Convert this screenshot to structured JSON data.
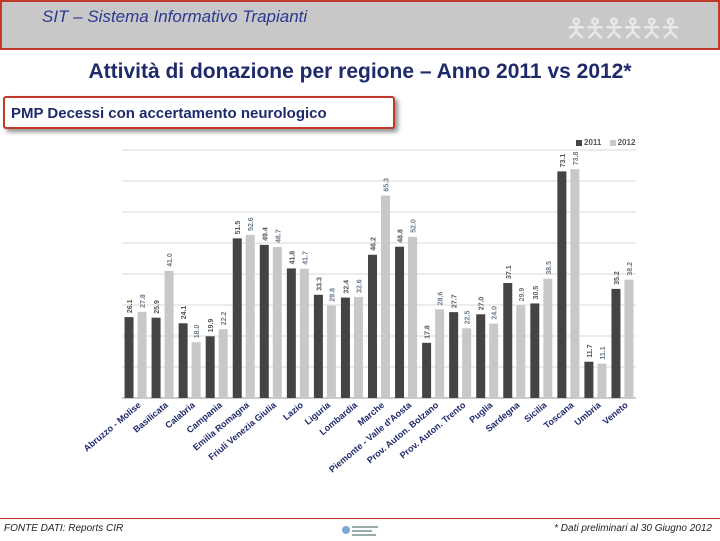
{
  "header": {
    "title": "SIT – Sistema Informativo Trapianti"
  },
  "main_title": "Attività di donazione per regione – Anno 2011 vs 2012*",
  "subtitle": "PMP Decessi con accertamento neurologico",
  "legend": {
    "label_2011": "2011",
    "label_2012": "2012"
  },
  "footer": {
    "source": "FONTE DATI: Reports CIR",
    "note": "* Dati preliminari al 30 Giugno 2012"
  },
  "colors": {
    "series_2011": "#444444",
    "series_2012": "#c8c8c8",
    "accent": "#c0392b",
    "title": "#1f2a6b"
  },
  "chart_data": {
    "type": "bar",
    "title": "PMP Decessi con accertamento neurologico",
    "categories": [
      "Abruzzo - Molise",
      "Basilicata",
      "Calabria",
      "Campania",
      "Emilia Romagna",
      "Friuli Venezia Giulia",
      "Lazio",
      "Liguria",
      "Lombardia",
      "Marche",
      "Piemonte - Valle d'Aosta",
      "Prov. Auton. Bolzano",
      "Prov. Auton. Trento",
      "Puglia",
      "Sardegna",
      "Sicilia",
      "Toscana",
      "Umbria",
      "Veneto"
    ],
    "series": [
      {
        "name": "2011",
        "values": [
          26.1,
          25.9,
          24.1,
          19.9,
          51.5,
          49.4,
          41.8,
          33.3,
          32.4,
          46.2,
          48.8,
          17.8,
          27.7,
          27.0,
          37.1,
          30.5,
          73.1,
          11.7,
          35.2
        ],
        "labels": [
          "26.1",
          "25.9",
          "24.1",
          "19.9",
          "51.5",
          "49.4",
          "41.8",
          "33.3",
          "32.4",
          "46.2",
          "48.8",
          "17.8",
          "27.7",
          "27.0",
          "37.1",
          "30.5",
          "73.1",
          "11.7",
          "35.2"
        ]
      },
      {
        "name": "2012",
        "values": [
          27.8,
          41.0,
          18.0,
          22.2,
          52.6,
          48.7,
          41.7,
          29.8,
          32.6,
          65.3,
          52.0,
          28.6,
          22.5,
          24.0,
          29.9,
          38.5,
          73.8,
          11.1,
          38.2
        ],
        "labels": [
          "27.8",
          "41.0",
          "18.0",
          "22.2",
          "52.6",
          "48.7",
          "41.7",
          "29.8",
          "32.6",
          "65.3",
          "52.0",
          "28.6",
          "22.5",
          "24.0",
          "29.9",
          "38.5",
          "73.8",
          "11.1",
          "38.2"
        ]
      }
    ],
    "ylim": [
      0,
      80
    ],
    "xlabel": "",
    "ylabel": "",
    "grid": true,
    "legend_position": "top-right"
  }
}
